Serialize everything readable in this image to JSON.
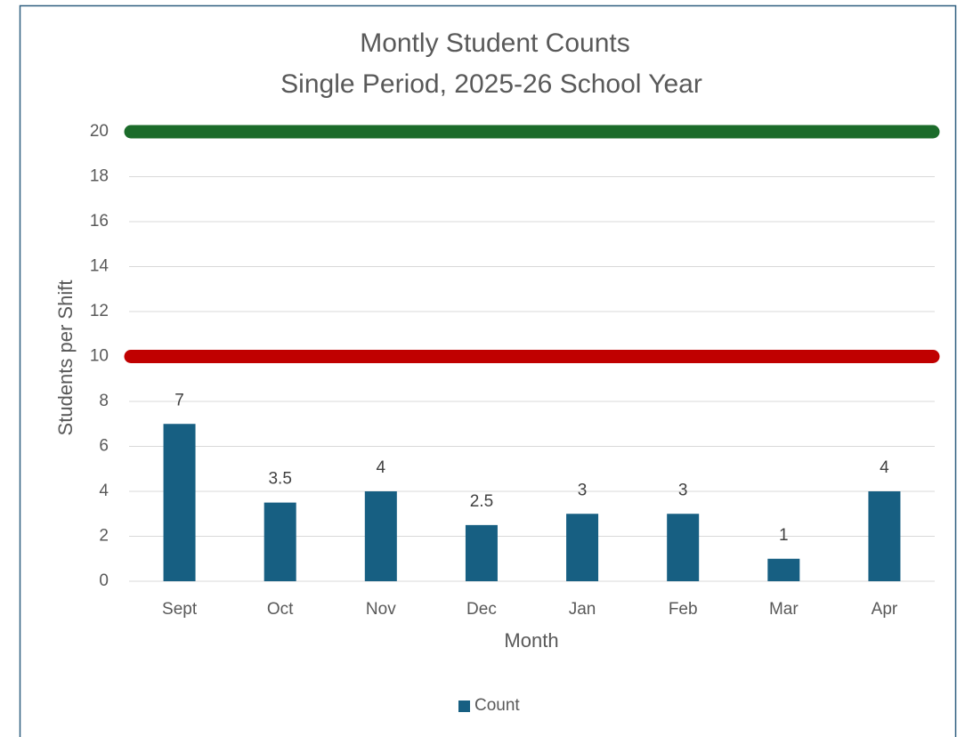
{
  "chart_data": {
    "type": "bar",
    "title": "Montly Student Counts",
    "subtitle": "Single Period, 2025-26 School Year",
    "x_label": "Month",
    "y_label": "Students per Shift",
    "categories": [
      "Sept",
      "Oct",
      "Nov",
      "Dec",
      "Jan",
      "Feb",
      "Mar",
      "Apr"
    ],
    "series": [
      {
        "name": "Count",
        "color": "#175f82",
        "values": [
          7,
          3.5,
          4,
          2.5,
          3,
          3,
          1,
          4
        ]
      }
    ],
    "reference_lines": [
      {
        "value": 20,
        "color": "#1b6b2a"
      },
      {
        "value": 10,
        "color": "#c00000"
      }
    ],
    "ylim": [
      0,
      20
    ],
    "yticks": [
      0,
      2,
      4,
      6,
      8,
      10,
      12,
      14,
      16,
      18,
      20
    ],
    "grid": true,
    "legend": "bottom"
  }
}
